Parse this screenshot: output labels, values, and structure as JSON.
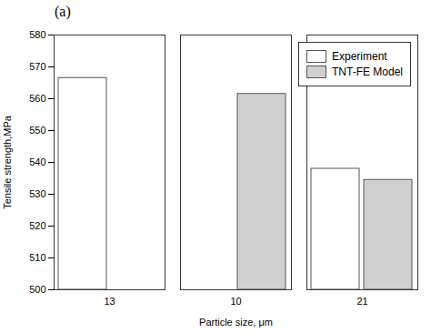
{
  "chart_data": {
    "type": "bar",
    "title": "(a)",
    "xlabel": "Particle size, μm",
    "ylabel": "Tensile strength,MPa",
    "categories": [
      "13",
      "10",
      "21"
    ],
    "series": [
      {
        "name": "Experiment",
        "color": "#ffffff",
        "values": [
          566.5,
          null,
          538.0
        ]
      },
      {
        "name": "TNT-FE Model",
        "color": "#d0d0d0",
        "values": [
          null,
          561.5,
          534.5
        ]
      }
    ],
    "ylim": [
      500,
      580
    ],
    "yticks": [
      500,
      510,
      520,
      530,
      540,
      550,
      560,
      570,
      580
    ],
    "legend": "upper right",
    "grid": false
  }
}
